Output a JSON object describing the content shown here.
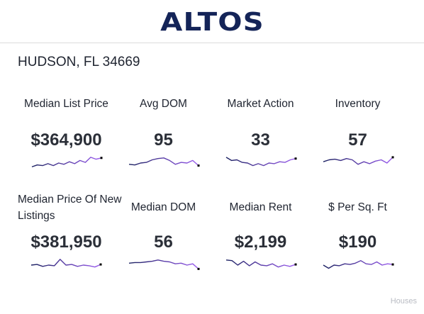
{
  "brand": {
    "logo": "ALTOS"
  },
  "location": "HUDSON, FL 34669",
  "metrics": [
    {
      "label": "Median List Price",
      "value": "$364,900",
      "trend": [
        0.2,
        0.35,
        0.3,
        0.45,
        0.3,
        0.5,
        0.4,
        0.6,
        0.45,
        0.7,
        0.55,
        0.95,
        0.8,
        0.9
      ]
    },
    {
      "label": "Avg DOM",
      "value": "95",
      "trend": [
        0.4,
        0.35,
        0.5,
        0.55,
        0.75,
        0.85,
        0.9,
        0.7,
        0.4,
        0.55,
        0.5,
        0.7,
        0.3
      ]
    },
    {
      "label": "Market Action",
      "value": "33",
      "trend": [
        0.95,
        0.7,
        0.75,
        0.55,
        0.5,
        0.3,
        0.45,
        0.3,
        0.5,
        0.45,
        0.6,
        0.55,
        0.75,
        0.85
      ]
    },
    {
      "label": "Inventory",
      "value": "57",
      "trend": [
        0.6,
        0.75,
        0.8,
        0.7,
        0.85,
        0.75,
        0.4,
        0.6,
        0.45,
        0.65,
        0.75,
        0.5,
        0.95
      ]
    },
    {
      "label": "Median Price Of New Listings",
      "value": "$381,950",
      "trend": [
        0.5,
        0.55,
        0.4,
        0.5,
        0.45,
        0.95,
        0.5,
        0.55,
        0.4,
        0.5,
        0.45,
        0.35,
        0.55
      ]
    },
    {
      "label": "Median DOM",
      "value": "56",
      "trend": [
        0.65,
        0.7,
        0.7,
        0.75,
        0.8,
        0.9,
        0.8,
        0.75,
        0.6,
        0.65,
        0.5,
        0.6,
        0.2
      ]
    },
    {
      "label": "Median Rent",
      "value": "$2,199",
      "trend": [
        0.9,
        0.85,
        0.5,
        0.8,
        0.45,
        0.75,
        0.5,
        0.45,
        0.6,
        0.35,
        0.5,
        0.4,
        0.55
      ]
    },
    {
      "label": "$ Per Sq. Ft",
      "value": "$190",
      "trend": [
        0.5,
        0.25,
        0.5,
        0.45,
        0.6,
        0.55,
        0.65,
        0.85,
        0.6,
        0.55,
        0.75,
        0.5,
        0.6,
        0.55
      ]
    }
  ],
  "footer": {
    "note": "Houses"
  },
  "colors": {
    "brand": "#142458",
    "spark_start": "#1a2060",
    "spark_end": "#9b5cf0",
    "end_dot": "#000000"
  }
}
